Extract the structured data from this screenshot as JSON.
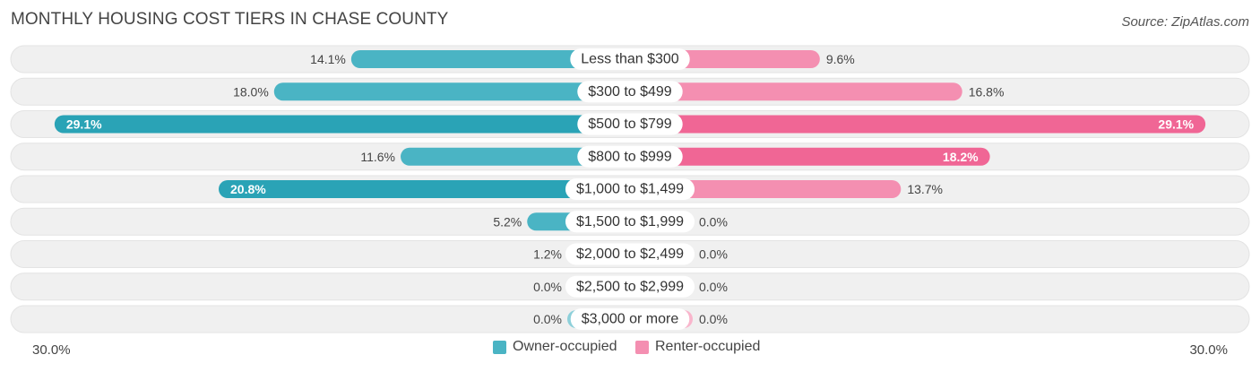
{
  "header": {
    "title": "MONTHLY HOUSING COST TIERS IN CHASE COUNTY",
    "source": "Source: ZipAtlas.com"
  },
  "colors": {
    "owner": "#4ab4c4",
    "owner_strong": "#2aa3b6",
    "renter": "#f48fb1",
    "renter_strong": "#f06695",
    "row_bg": "#eeeeee",
    "label_bg": "#ffffff"
  },
  "chart_data": {
    "type": "bar",
    "orientation": "horizontal-diverging",
    "categories": [
      "Less than $300",
      "$300 to $499",
      "$500 to $799",
      "$800 to $999",
      "$1,000 to $1,499",
      "$1,500 to $1,999",
      "$2,000 to $2,499",
      "$2,500 to $2,999",
      "$3,000 or more"
    ],
    "series": [
      {
        "name": "Owner-occupied",
        "values": [
          14.1,
          18.0,
          29.1,
          11.6,
          20.8,
          5.2,
          1.2,
          0.0,
          0.0
        ],
        "labels": [
          "14.1%",
          "18.0%",
          "29.1%",
          "11.6%",
          "20.8%",
          "5.2%",
          "1.2%",
          "0.0%",
          "0.0%"
        ]
      },
      {
        "name": "Renter-occupied",
        "values": [
          9.6,
          16.8,
          29.1,
          18.2,
          13.7,
          0.0,
          0.0,
          0.0,
          0.0
        ],
        "labels": [
          "9.6%",
          "16.8%",
          "29.1%",
          "18.2%",
          "13.7%",
          "0.0%",
          "0.0%",
          "0.0%",
          "0.0%"
        ]
      }
    ],
    "xlim": [
      0,
      30.0
    ],
    "axis_labels": {
      "left": "30.0%",
      "right": "30.0%"
    },
    "legend_position": "bottom-center"
  }
}
